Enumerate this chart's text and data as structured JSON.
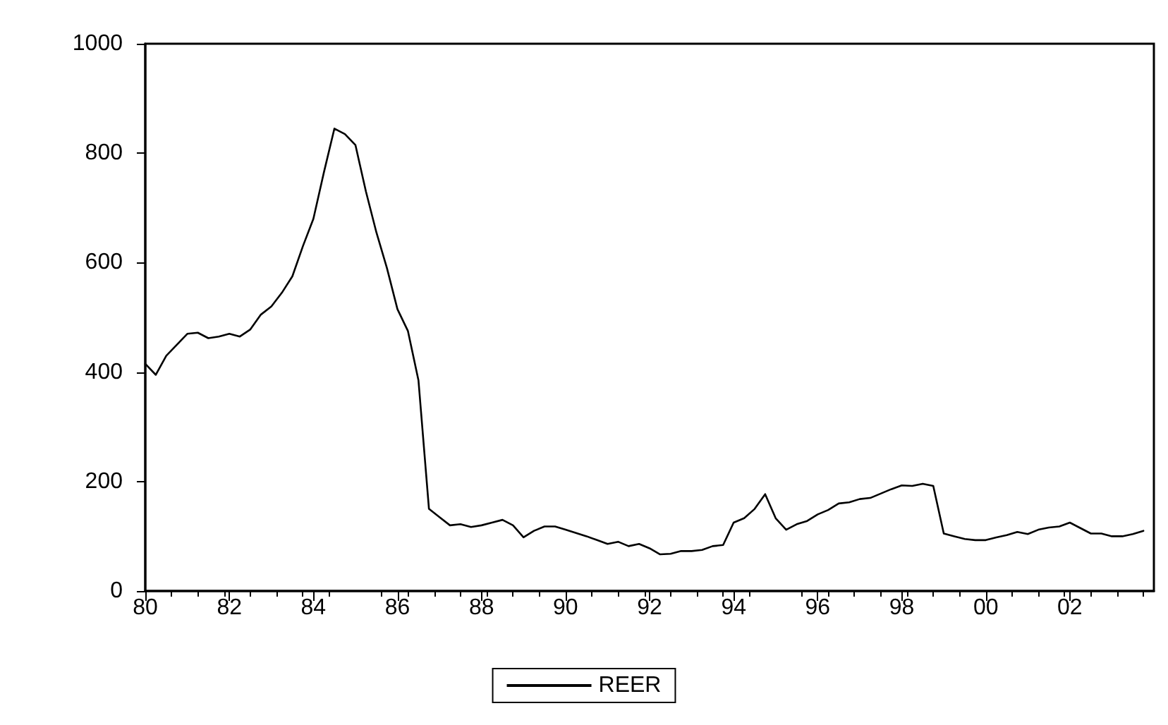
{
  "chart_data": {
    "type": "line",
    "x": [
      1980,
      1980.25,
      1980.5,
      1980.75,
      1981,
      1981.25,
      1981.5,
      1981.75,
      1982,
      1982.25,
      1982.5,
      1982.75,
      1983,
      1983.25,
      1983.5,
      1983.75,
      1984,
      1984.25,
      1984.5,
      1984.75,
      1985,
      1985.25,
      1985.5,
      1985.75,
      1986,
      1986.25,
      1986.5,
      1986.75,
      1987,
      1987.25,
      1987.5,
      1987.75,
      1988,
      1988.25,
      1988.5,
      1988.75,
      1989,
      1989.25,
      1989.5,
      1989.75,
      1990,
      1990.25,
      1990.5,
      1990.75,
      1991,
      1991.25,
      1991.5,
      1991.75,
      1992,
      1992.25,
      1992.5,
      1992.75,
      1993,
      1993.25,
      1993.5,
      1993.75,
      1994,
      1994.25,
      1994.5,
      1994.75,
      1995,
      1995.25,
      1995.5,
      1995.75,
      1996,
      1996.25,
      1996.5,
      1996.75,
      1997,
      1997.25,
      1997.5,
      1997.75,
      1998,
      1998.25,
      1998.5,
      1998.75,
      1999,
      1999.25,
      1999.5,
      1999.75,
      2000,
      2000.25,
      2000.5,
      2000.75,
      2001,
      2001.25,
      2001.5,
      2001.75,
      2002,
      2002.25,
      2002.5,
      2002.75,
      2003,
      2003.25,
      2003.5,
      2003.75
    ],
    "series": [
      {
        "name": "REER",
        "color": "#000000",
        "values": [
          415,
          395,
          430,
          450,
          470,
          472,
          462,
          465,
          470,
          465,
          478,
          505,
          520,
          545,
          575,
          630,
          680,
          765,
          845,
          835,
          815,
          730,
          655,
          590,
          515,
          475,
          385,
          150,
          135,
          120,
          122,
          117,
          120,
          125,
          130,
          120,
          98,
          110,
          118,
          118,
          112,
          106,
          100,
          93,
          86,
          90,
          82,
          86,
          78,
          67,
          68,
          73,
          73,
          75,
          82,
          84,
          125,
          133,
          150,
          177,
          133,
          112,
          122,
          128,
          140,
          148,
          160,
          162,
          168,
          170,
          178,
          186,
          193,
          192,
          196,
          192,
          105,
          100,
          95,
          93,
          93,
          98,
          102,
          108,
          104,
          112,
          116,
          118,
          125,
          115,
          105,
          105,
          100,
          100,
          104,
          110
        ]
      }
    ],
    "xlim": [
      1980,
      2004
    ],
    "xticks": [
      {
        "value": 1980,
        "label": "80"
      },
      {
        "value": 1982,
        "label": "82"
      },
      {
        "value": 1984,
        "label": "84"
      },
      {
        "value": 1986,
        "label": "86"
      },
      {
        "value": 1988,
        "label": "88"
      },
      {
        "value": 1990,
        "label": "90"
      },
      {
        "value": 1992,
        "label": "92"
      },
      {
        "value": 1994,
        "label": "94"
      },
      {
        "value": 1996,
        "label": "96"
      },
      {
        "value": 1998,
        "label": "98"
      },
      {
        "value": 2000,
        "label": "00"
      },
      {
        "value": 2002,
        "label": "02"
      }
    ],
    "ylim": [
      0,
      1000
    ],
    "yticks": [
      0,
      200,
      400,
      600,
      800,
      1000
    ],
    "grid": false,
    "legend": "bottom",
    "marker": "none",
    "line_style": "solid"
  }
}
